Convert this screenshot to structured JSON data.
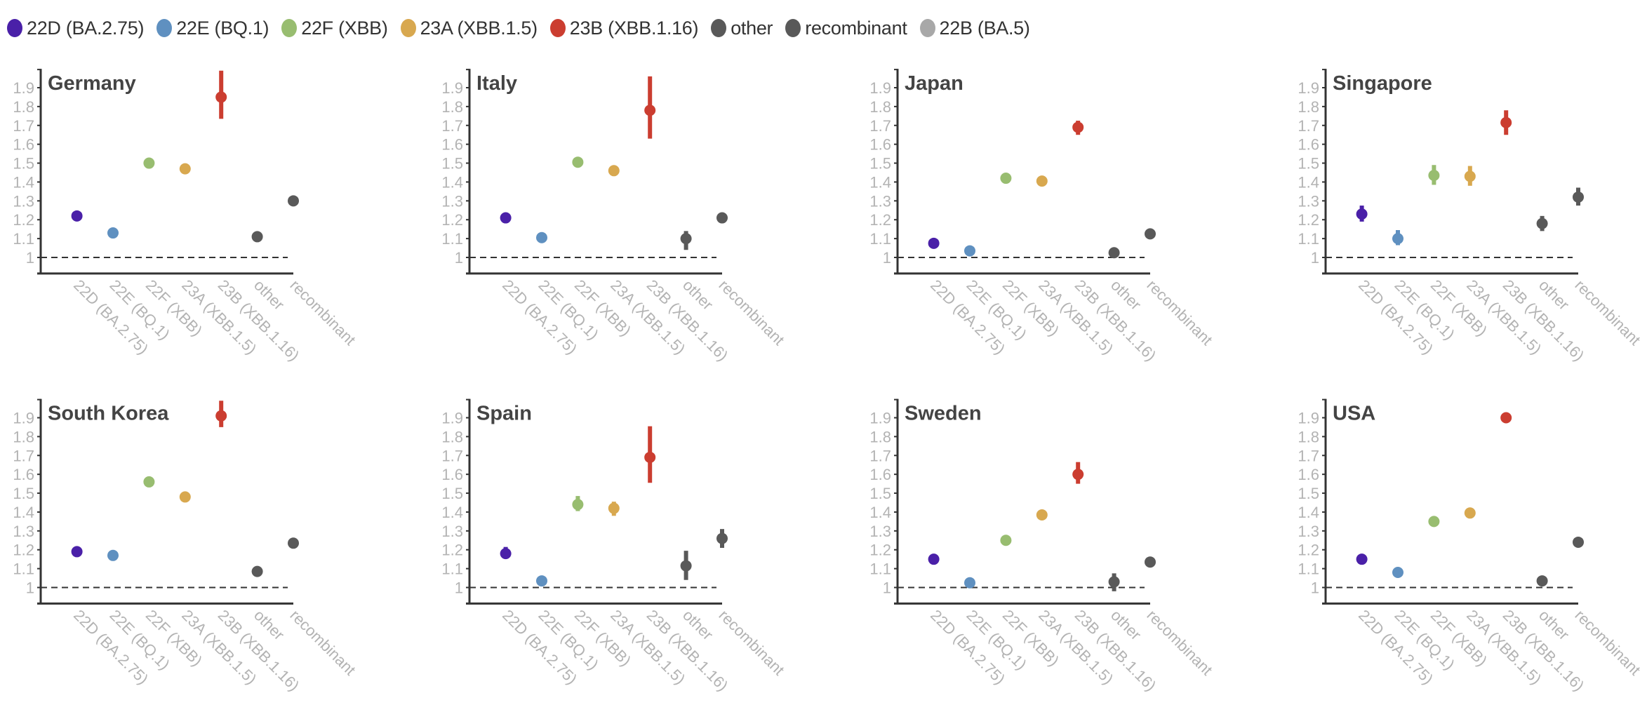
{
  "legend": [
    {
      "label": "22D (BA.2.75)",
      "color": "#4a20a8"
    },
    {
      "label": "22E (BQ.1)",
      "color": "#5f90c0"
    },
    {
      "label": "22F (XBB)",
      "color": "#98bd70"
    },
    {
      "label": "23A (XBB.1.5)",
      "color": "#d8a84f"
    },
    {
      "label": "23B (XBB.1.16)",
      "color": "#cb3d30"
    },
    {
      "label": "other",
      "color": "#595959"
    },
    {
      "label": "recombinant",
      "color": "#595959"
    },
    {
      "label": "22B (BA.5)",
      "color": "#a8a8a8"
    }
  ],
  "chart_data": {
    "type": "scatter",
    "subtype": "point-with-error-bars, small multiples",
    "categories": [
      "22D (BA.2.75)",
      "22E (BQ.1)",
      "22F (XBB)",
      "23A (XBB.1.5)",
      "23B (XBB.1.16)",
      "other",
      "recombinant"
    ],
    "category_colors": [
      "#4a20a8",
      "#5f90c0",
      "#98bd70",
      "#d8a84f",
      "#cb3d30",
      "#595959",
      "#595959"
    ],
    "ylim": [
      0.915,
      2.0
    ],
    "yticks": [
      1,
      1.1,
      1.2,
      1.3,
      1.4,
      1.5,
      1.6,
      1.7,
      1.8,
      1.9
    ],
    "ytick_labels": [
      "1",
      "1.1",
      "1.2",
      "1.3",
      "1.4",
      "1.5",
      "1.6",
      "1.7",
      "1.8",
      "1.9"
    ],
    "reference_line": 1,
    "xlabel": "",
    "ylabel": "",
    "grid": false,
    "legend_position": "top",
    "panels": [
      {
        "title": "Germany",
        "values": [
          1.22,
          1.13,
          1.5,
          1.47,
          1.85,
          1.11,
          1.3
        ],
        "lower": [
          1.22,
          1.13,
          1.5,
          1.47,
          1.735,
          1.1,
          1.3
        ],
        "upper": [
          1.22,
          1.13,
          1.5,
          1.47,
          1.99,
          1.115,
          1.3
        ]
      },
      {
        "title": "Italy",
        "values": [
          1.21,
          1.105,
          1.505,
          1.46,
          1.78,
          1.1,
          1.21
        ],
        "lower": [
          1.21,
          1.105,
          1.505,
          1.46,
          1.63,
          1.04,
          1.21
        ],
        "upper": [
          1.21,
          1.105,
          1.505,
          1.46,
          1.96,
          1.14,
          1.21
        ]
      },
      {
        "title": "Japan",
        "values": [
          1.075,
          1.035,
          1.42,
          1.405,
          1.69,
          1.025,
          1.125
        ],
        "lower": [
          1.075,
          1.035,
          1.42,
          1.405,
          1.65,
          1.025,
          1.125
        ],
        "upper": [
          1.075,
          1.035,
          1.42,
          1.405,
          1.725,
          1.025,
          1.125
        ]
      },
      {
        "title": "Singapore",
        "values": [
          1.23,
          1.1,
          1.435,
          1.43,
          1.715,
          1.18,
          1.32
        ],
        "lower": [
          1.19,
          1.065,
          1.385,
          1.38,
          1.65,
          1.14,
          1.275
        ],
        "upper": [
          1.275,
          1.145,
          1.49,
          1.485,
          1.78,
          1.22,
          1.37
        ]
      },
      {
        "title": "South Korea",
        "values": [
          1.19,
          1.17,
          1.56,
          1.48,
          1.91,
          1.085,
          1.235
        ],
        "lower": [
          1.19,
          1.17,
          1.56,
          1.48,
          1.85,
          1.085,
          1.235
        ],
        "upper": [
          1.19,
          1.17,
          1.56,
          1.48,
          1.99,
          1.085,
          1.235
        ]
      },
      {
        "title": "Spain",
        "values": [
          1.18,
          1.035,
          1.44,
          1.42,
          1.69,
          1.115,
          1.26
        ],
        "lower": [
          1.155,
          1.035,
          1.405,
          1.38,
          1.555,
          1.04,
          1.21
        ],
        "upper": [
          1.215,
          1.035,
          1.485,
          1.455,
          1.855,
          1.195,
          1.31
        ]
      },
      {
        "title": "Sweden",
        "values": [
          1.15,
          1.025,
          1.25,
          1.385,
          1.6,
          1.03,
          1.135
        ],
        "lower": [
          1.15,
          1.025,
          1.25,
          1.385,
          1.55,
          0.98,
          1.135
        ],
        "upper": [
          1.15,
          1.025,
          1.25,
          1.385,
          1.665,
          1.075,
          1.135
        ]
      },
      {
        "title": "USA",
        "values": [
          1.15,
          1.08,
          1.35,
          1.395,
          1.9,
          1.035,
          1.24
        ],
        "lower": [
          1.15,
          1.08,
          1.35,
          1.395,
          1.9,
          1.035,
          1.24
        ],
        "upper": [
          1.15,
          1.08,
          1.35,
          1.395,
          1.9,
          1.035,
          1.24
        ]
      }
    ]
  }
}
